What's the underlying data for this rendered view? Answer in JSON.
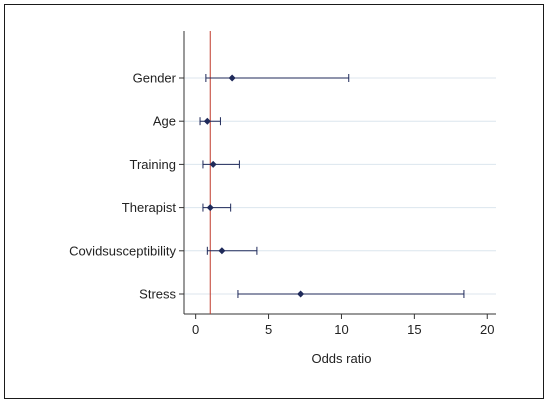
{
  "chart_data": {
    "type": "scatter",
    "subtype": "forest-plot",
    "title": "",
    "xlabel": "Odds ratio",
    "ylabel": "",
    "xlim": [
      -0.8,
      20.6
    ],
    "xticks": [
      0,
      5,
      10,
      15,
      20
    ],
    "reference_line": 1,
    "grid": "horizontal",
    "legend": "none",
    "colors": {
      "marker": "#1f2a5a",
      "reference_line": "#c0392b",
      "grid": "#dce6ee",
      "axis": "#333333"
    },
    "categories": [
      "Gender",
      "Age",
      "Training",
      "Therapist",
      "Covidsusceptibility",
      "Stress"
    ],
    "series": [
      {
        "values": [
          2.5,
          0.8,
          1.2,
          1.0,
          1.8,
          7.2
        ],
        "ci_low": [
          0.7,
          0.3,
          0.5,
          0.5,
          0.8,
          2.9
        ],
        "ci_high": [
          10.5,
          1.7,
          3.0,
          2.4,
          4.2,
          18.4
        ]
      }
    ]
  }
}
